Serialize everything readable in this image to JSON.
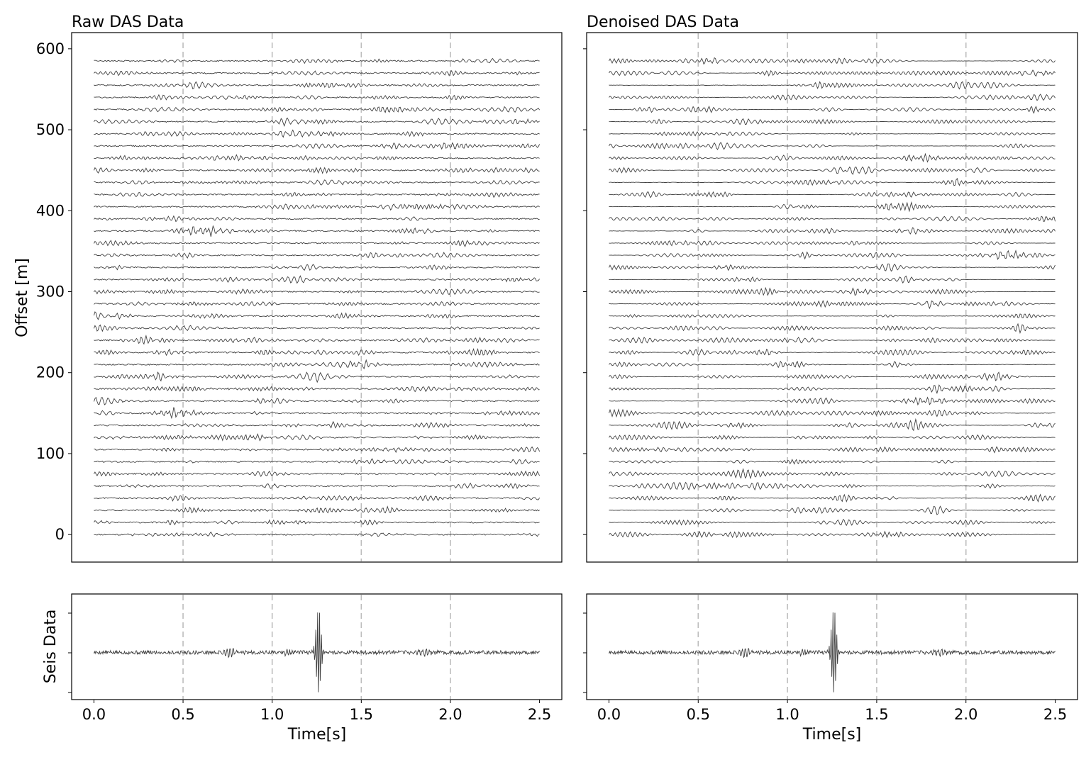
{
  "chart_data": [
    {
      "type": "line",
      "title": "Raw DAS Data",
      "xlabel": "",
      "ylabel": "Offset [m]",
      "xlim": [
        -0.125,
        2.625
      ],
      "ylim": [
        -34,
        620
      ],
      "yticks": [
        0,
        100,
        200,
        300,
        400,
        500,
        600
      ],
      "ytick_labels": [
        "0",
        "100",
        "200",
        "300",
        "400",
        "500",
        "600"
      ],
      "vlines": [
        0.5,
        1.0,
        1.5,
        2.0
      ],
      "trace_offsets": [
        0,
        15,
        30,
        45,
        60,
        75,
        90,
        105,
        120,
        135,
        150,
        165,
        180,
        195,
        210,
        225,
        240,
        255,
        270,
        285,
        300,
        315,
        330,
        345,
        360,
        375,
        390,
        405,
        420,
        435,
        450,
        465,
        480,
        495,
        510,
        525,
        540,
        555,
        570,
        585
      ],
      "time_range": [
        0,
        2.5
      ],
      "seed": 11,
      "mode": "raw"
    },
    {
      "type": "line",
      "title": "Denoised DAS Data",
      "xlabel": "",
      "ylabel": "",
      "xlim": [
        -0.125,
        2.625
      ],
      "ylim": [
        -34,
        620
      ],
      "vlines": [
        0.5,
        1.0,
        1.5,
        2.0
      ],
      "trace_offsets": [
        0,
        15,
        30,
        45,
        60,
        75,
        90,
        105,
        120,
        135,
        150,
        165,
        180,
        195,
        210,
        225,
        240,
        255,
        270,
        285,
        300,
        315,
        330,
        345,
        360,
        375,
        390,
        405,
        420,
        435,
        450,
        465,
        480,
        495,
        510,
        525,
        540,
        555,
        570,
        585
      ],
      "time_range": [
        0,
        2.5
      ],
      "seed": 29,
      "mode": "denoised"
    },
    {
      "type": "line",
      "title": "",
      "xlabel": "Time[s]",
      "ylabel": "Seis Data",
      "xlim": [
        -0.125,
        2.625
      ],
      "xticks": [
        0.0,
        0.5,
        1.0,
        1.5,
        2.0,
        2.5
      ],
      "xtick_labels": [
        "0.0",
        "0.5",
        "1.0",
        "1.5",
        "2.0",
        "2.5"
      ],
      "vlines": [
        0.5,
        1.0,
        1.5,
        2.0
      ],
      "event_time": 1.26,
      "seed": 5
    },
    {
      "type": "line",
      "title": "",
      "xlabel": "Time[s]",
      "ylabel": "",
      "xlim": [
        -0.125,
        2.625
      ],
      "xticks": [
        0.0,
        0.5,
        1.0,
        1.5,
        2.0,
        2.5
      ],
      "xtick_labels": [
        "0.0",
        "0.5",
        "1.0",
        "1.5",
        "2.0",
        "2.5"
      ],
      "vlines": [
        0.5,
        1.0,
        1.5,
        2.0
      ],
      "event_time": 1.26,
      "seed": 5
    }
  ]
}
